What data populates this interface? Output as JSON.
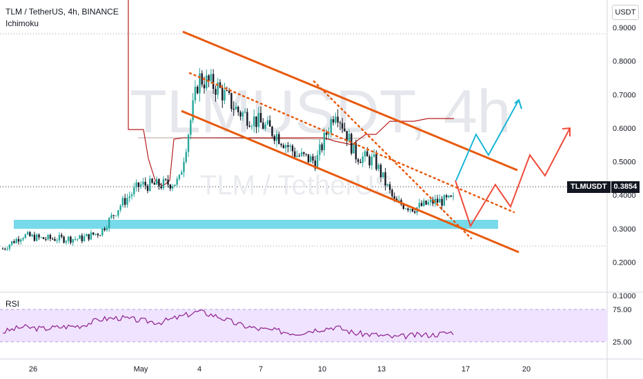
{
  "header": {
    "title": "TLM / TetherUS, 4h, BINANCE",
    "indicator": "Ichimoku"
  },
  "watermark": {
    "primary": "TLMUSDT, 4h",
    "secondary": "TLM / TetherUS"
  },
  "price_axis": {
    "unit": "USDT",
    "ticks": [
      "0.9000",
      "0.8000",
      "0.7000",
      "0.6000",
      "0.5000",
      "0.4000",
      "0.3000",
      "0.2000",
      "0.1000"
    ]
  },
  "current_price": {
    "symbol": "TLMUSDT",
    "value": "0.3854"
  },
  "time_axis": {
    "ticks": [
      "26",
      "May",
      "4",
      "7",
      "10",
      "13",
      "17",
      "20"
    ]
  },
  "rsi_panel": {
    "label": "RSI",
    "ticks": [
      "75.00",
      "25.00"
    ]
  },
  "colors": {
    "up_candle": "#26a69a",
    "down_candle": "#131722",
    "channel": "#e8590c",
    "support_zone": "#5fd3e6",
    "bullish_projection": "#17b6d6",
    "bearish_projection": "#f04a3a",
    "rsi_line": "#8e1c8e",
    "rsi_band": "#efe3ff",
    "ichimoku": "#b71c1c"
  },
  "chart_data": {
    "type": "line",
    "title": "TLM / TetherUS, 4h, BINANCE",
    "y_range": [
      0.1,
      0.9
    ],
    "x_categories": [
      "26",
      "May",
      "4",
      "7",
      "10",
      "13",
      "17",
      "20"
    ],
    "price_path": [
      {
        "x": "Apr 23",
        "y": 0.24
      },
      {
        "x": "Apr 24",
        "y": 0.28
      },
      {
        "x": "Apr 25",
        "y": 0.27
      },
      {
        "x": "Apr 26",
        "y": 0.27
      },
      {
        "x": "Apr 27",
        "y": 0.27
      },
      {
        "x": "Apr 28",
        "y": 0.29
      },
      {
        "x": "Apr 29",
        "y": 0.37
      },
      {
        "x": "Apr 30",
        "y": 0.43
      },
      {
        "x": "May 1",
        "y": 0.43
      },
      {
        "x": "May 2",
        "y": 0.44
      },
      {
        "x": "May 3",
        "y": 0.75
      },
      {
        "x": "May 4",
        "y": 0.72
      },
      {
        "x": "May 5",
        "y": 0.65
      },
      {
        "x": "May 6",
        "y": 0.62
      },
      {
        "x": "May 7",
        "y": 0.58
      },
      {
        "x": "May 8",
        "y": 0.52
      },
      {
        "x": "May 9",
        "y": 0.5
      },
      {
        "x": "May 10",
        "y": 0.66
      },
      {
        "x": "May 11",
        "y": 0.52
      },
      {
        "x": "May 12",
        "y": 0.5
      },
      {
        "x": "May 13",
        "y": 0.38
      },
      {
        "x": "May 14",
        "y": 0.36
      },
      {
        "x": "May 15",
        "y": 0.38
      },
      {
        "x": "May 16",
        "y": 0.3854
      }
    ],
    "support_zone": [
      0.265,
      0.29
    ],
    "rsi": {
      "levels": [
        75,
        25
      ],
      "values": [
        40,
        48,
        45,
        48,
        50,
        60,
        62,
        58,
        55,
        63,
        72,
        64,
        52,
        45,
        42,
        38,
        44,
        48,
        38,
        36,
        32,
        35,
        36,
        40
      ]
    }
  }
}
